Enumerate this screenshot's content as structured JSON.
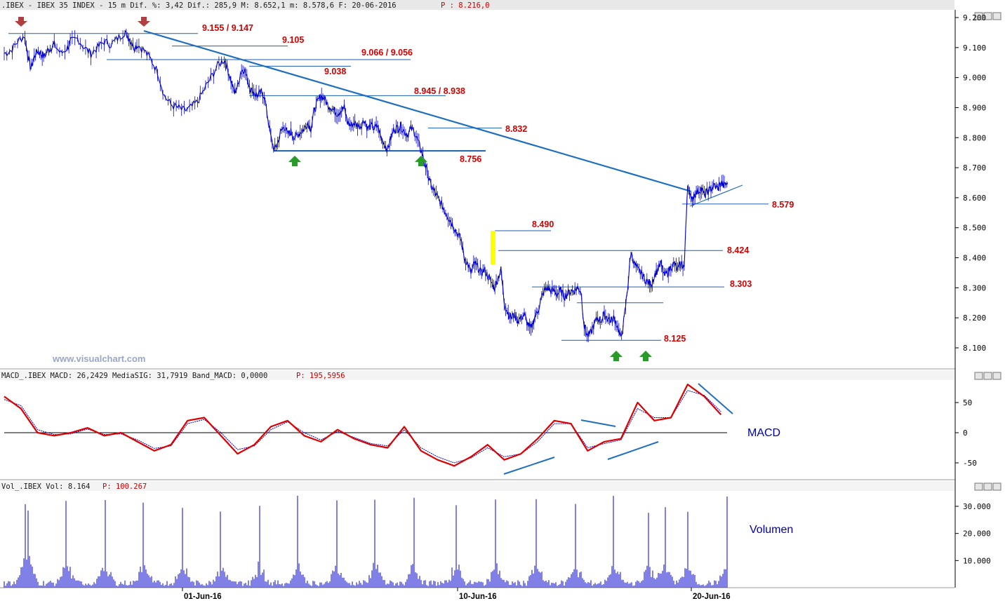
{
  "header": {
    "price_text": ".IBEX - IBEX 35 INDEX -  15 m Dif. %: 3,42 Dif.: 285,9 M: 8.652,1 m: 8.578,6 F: 20-06-2016",
    "price_p": "P : 8.216,0",
    "macd_text": "MACD_.IBEX MACD: 26,2429 MediaSIG: 31,7919 Band_MACD: 0,0000",
    "macd_p": "P: 195,5956",
    "vol_text": "Vol_.IBEX Vol: 8.164",
    "vol_p": "P: 100.267"
  },
  "watermark": "www.visualchart.com",
  "labels": {
    "macd": "MACD",
    "volume": "Volumen"
  },
  "colors": {
    "price": "#0000cc",
    "level": "#1a5fb0",
    "trend": "#1f6fc0",
    "macd": "#dd0000",
    "signal": "#0000aa",
    "label": "#d40000",
    "arrow_down": "#b04040",
    "arrow_up": "#2a9a2a",
    "gap": "#ffff00"
  },
  "chart_data": [
    {
      "type": "line",
      "name": "price",
      "x_labels": [
        "01-Jun-16",
        "10-Jun-16",
        "20-Jun-16"
      ],
      "ylim": [
        8050,
        9220
      ],
      "y_ticks": [
        "9.200",
        "9.100",
        "9.000",
        "8.900",
        "8.800",
        "8.700",
        "8.600",
        "8.500",
        "8.400",
        "8.300",
        "8.200",
        "8.100"
      ],
      "path": [
        [
          0,
          9080
        ],
        [
          2,
          9090
        ],
        [
          4,
          9120
        ],
        [
          6,
          9140
        ],
        [
          7,
          9080
        ],
        [
          8,
          9030
        ],
        [
          9,
          9070
        ],
        [
          10,
          9090
        ],
        [
          11,
          9080
        ],
        [
          12,
          9070
        ],
        [
          13,
          9090
        ],
        [
          14,
          9100
        ],
        [
          15,
          9110
        ],
        [
          17,
          9080
        ],
        [
          19,
          9100
        ],
        [
          20,
          9120
        ],
        [
          22,
          9130
        ],
        [
          24,
          9100
        ],
        [
          26,
          9080
        ],
        [
          28,
          9100
        ],
        [
          30,
          9120
        ],
        [
          32,
          9110
        ],
        [
          34,
          9130
        ],
        [
          36,
          9150
        ],
        [
          37,
          9140
        ],
        [
          38,
          9120
        ],
        [
          39,
          9100
        ],
        [
          40,
          9110
        ],
        [
          42,
          9090
        ],
        [
          44,
          9060
        ],
        [
          46,
          9020
        ],
        [
          48,
          8940
        ],
        [
          50,
          8910
        ],
        [
          52,
          8900
        ],
        [
          54,
          8890
        ],
        [
          56,
          8900
        ],
        [
          58,
          8920
        ],
        [
          60,
          8960
        ],
        [
          62,
          9000
        ],
        [
          64,
          9040
        ],
        [
          66,
          9060
        ],
        [
          67,
          9030
        ],
        [
          68,
          8990
        ],
        [
          69,
          8950
        ],
        [
          70,
          8970
        ],
        [
          71,
          9020
        ],
        [
          72,
          9030
        ],
        [
          73,
          8990
        ],
        [
          74,
          8960
        ],
        [
          75,
          8950
        ],
        [
          76,
          8940
        ],
        [
          77,
          8950
        ],
        [
          78,
          8940
        ],
        [
          79,
          8870
        ],
        [
          80,
          8800
        ],
        [
          81,
          8760
        ],
        [
          82,
          8780
        ],
        [
          83,
          8820
        ],
        [
          84,
          8840
        ],
        [
          85,
          8810
        ],
        [
          86,
          8820
        ],
        [
          87,
          8800
        ],
        [
          88,
          8810
        ],
        [
          89,
          8820
        ],
        [
          90,
          8830
        ],
        [
          91,
          8850
        ],
        [
          92,
          8830
        ],
        [
          93,
          8890
        ],
        [
          94,
          8920
        ],
        [
          95,
          8940
        ],
        [
          96,
          8930
        ],
        [
          97,
          8910
        ],
        [
          98,
          8900
        ],
        [
          99,
          8890
        ],
        [
          100,
          8880
        ],
        [
          101,
          8890
        ],
        [
          102,
          8900
        ],
        [
          103,
          8850
        ],
        [
          104,
          8840
        ],
        [
          105,
          8850
        ],
        [
          106,
          8840
        ],
        [
          107,
          8840
        ],
        [
          108,
          8860
        ],
        [
          109,
          8830
        ],
        [
          110,
          8840
        ],
        [
          111,
          8830
        ],
        [
          112,
          8840
        ],
        [
          113,
          8800
        ],
        [
          114,
          8780
        ],
        [
          115,
          8760
        ],
        [
          116,
          8800
        ],
        [
          117,
          8830
        ],
        [
          118,
          8830
        ],
        [
          119,
          8840
        ],
        [
          120,
          8820
        ],
        [
          121,
          8810
        ],
        [
          122,
          8830
        ],
        [
          123,
          8820
        ],
        [
          124,
          8790
        ],
        [
          125,
          8760
        ],
        [
          126,
          8720
        ],
        [
          127,
          8680
        ],
        [
          128,
          8640
        ],
        [
          129,
          8620
        ],
        [
          130,
          8600
        ],
        [
          131,
          8580
        ],
        [
          132,
          8560
        ],
        [
          133,
          8540
        ],
        [
          134,
          8520
        ],
        [
          135,
          8500
        ],
        [
          136,
          8480
        ],
        [
          137,
          8460
        ],
        [
          138,
          8400
        ],
        [
          139,
          8380
        ],
        [
          140,
          8350
        ],
        [
          141,
          8380
        ],
        [
          142,
          8370
        ],
        [
          143,
          8350
        ],
        [
          144,
          8360
        ],
        [
          145,
          8340
        ],
        [
          146,
          8320
        ],
        [
          147,
          8300
        ],
        [
          148,
          8330
        ],
        [
          149,
          8360
        ],
        [
          150,
          8250
        ],
        [
          151,
          8220
        ],
        [
          152,
          8200
        ],
        [
          153,
          8210
        ],
        [
          154,
          8190
        ],
        [
          155,
          8200
        ],
        [
          156,
          8210
        ],
        [
          157,
          8180
        ],
        [
          158,
          8160
        ],
        [
          159,
          8200
        ],
        [
          160,
          8220
        ],
        [
          161,
          8260
        ],
        [
          162,
          8290
        ],
        [
          163,
          8300
        ],
        [
          164,
          8290
        ],
        [
          165,
          8290
        ],
        [
          166,
          8280
        ],
        [
          167,
          8290
        ],
        [
          168,
          8270
        ],
        [
          169,
          8280
        ],
        [
          170,
          8290
        ],
        [
          171,
          8290
        ],
        [
          172,
          8300
        ],
        [
          173,
          8290
        ],
        [
          174,
          8170
        ],
        [
          175,
          8140
        ],
        [
          176,
          8150
        ],
        [
          177,
          8180
        ],
        [
          178,
          8200
        ],
        [
          179,
          8190
        ],
        [
          180,
          8210
        ],
        [
          181,
          8200
        ],
        [
          182,
          8190
        ],
        [
          183,
          8200
        ],
        [
          184,
          8170
        ],
        [
          185,
          8130
        ],
        [
          186,
          8200
        ],
        [
          187,
          8300
        ],
        [
          188,
          8420
        ],
        [
          189,
          8380
        ],
        [
          190,
          8360
        ],
        [
          191,
          8350
        ],
        [
          192,
          8330
        ],
        [
          193,
          8320
        ],
        [
          194,
          8310
        ],
        [
          195,
          8340
        ],
        [
          196,
          8360
        ],
        [
          197,
          8380
        ],
        [
          198,
          8340
        ],
        [
          199,
          8350
        ],
        [
          200,
          8370
        ],
        [
          201,
          8380
        ],
        [
          202,
          8360
        ],
        [
          203,
          8380
        ],
        [
          204,
          8370
        ],
        [
          205,
          8650
        ],
        [
          206,
          8590
        ],
        [
          207,
          8610
        ],
        [
          208,
          8620
        ],
        [
          209,
          8630
        ],
        [
          210,
          8610
        ],
        [
          211,
          8620
        ],
        [
          212,
          8630
        ],
        [
          213,
          8640
        ],
        [
          214,
          8630
        ],
        [
          215,
          8650
        ],
        [
          216,
          8640
        ],
        [
          217,
          8650
        ]
      ],
      "levels": [
        {
          "value": 9147,
          "label": "9.155 / 9.147"
        },
        {
          "value": 9105,
          "label": "9.105"
        },
        {
          "value": 9060,
          "label": "9.066 / 9.056"
        },
        {
          "value": 9038,
          "label": "9.038"
        },
        {
          "value": 8940,
          "label": "8.945 / 8.938"
        },
        {
          "value": 8832,
          "label": "8.832"
        },
        {
          "value": 8756,
          "label": "8.756"
        },
        {
          "value": 8579,
          "label": "8.579"
        },
        {
          "value": 8490,
          "label": "8.490"
        },
        {
          "value": 8424,
          "label": "8.424"
        },
        {
          "value": 8303,
          "label": "8.303"
        },
        {
          "value": 8125,
          "label": "8.125"
        }
      ]
    },
    {
      "type": "line",
      "name": "MACD",
      "ylim": [
        -80,
        95
      ],
      "y_ticks": [
        "50",
        "0",
        "-50"
      ],
      "macd": [
        [
          0,
          60
        ],
        [
          5,
          40
        ],
        [
          10,
          0
        ],
        [
          15,
          -5
        ],
        [
          20,
          0
        ],
        [
          25,
          8
        ],
        [
          30,
          -5
        ],
        [
          35,
          0
        ],
        [
          40,
          -15
        ],
        [
          45,
          -30
        ],
        [
          50,
          -20
        ],
        [
          55,
          20
        ],
        [
          60,
          25
        ],
        [
          65,
          -5
        ],
        [
          70,
          -35
        ],
        [
          75,
          -20
        ],
        [
          80,
          10
        ],
        [
          85,
          20
        ],
        [
          90,
          -5
        ],
        [
          95,
          -15
        ],
        [
          100,
          5
        ],
        [
          105,
          -10
        ],
        [
          110,
          -20
        ],
        [
          115,
          -25
        ],
        [
          120,
          10
        ],
        [
          125,
          -30
        ],
        [
          130,
          -45
        ],
        [
          135,
          -55
        ],
        [
          140,
          -40
        ],
        [
          145,
          -20
        ],
        [
          150,
          -45
        ],
        [
          155,
          -35
        ],
        [
          160,
          -10
        ],
        [
          165,
          20
        ],
        [
          170,
          15
        ],
        [
          175,
          -30
        ],
        [
          180,
          -15
        ],
        [
          185,
          -10
        ],
        [
          190,
          50
        ],
        [
          195,
          20
        ],
        [
          200,
          25
        ],
        [
          205,
          80
        ],
        [
          210,
          60
        ],
        [
          215,
          30
        ]
      ],
      "signal": [
        [
          0,
          55
        ],
        [
          5,
          45
        ],
        [
          10,
          5
        ],
        [
          15,
          -3
        ],
        [
          20,
          -2
        ],
        [
          25,
          6
        ],
        [
          30,
          -3
        ],
        [
          35,
          -2
        ],
        [
          40,
          -12
        ],
        [
          45,
          -26
        ],
        [
          50,
          -22
        ],
        [
          55,
          15
        ],
        [
          60,
          22
        ],
        [
          65,
          0
        ],
        [
          70,
          -28
        ],
        [
          75,
          -22
        ],
        [
          80,
          5
        ],
        [
          85,
          18
        ],
        [
          90,
          0
        ],
        [
          95,
          -12
        ],
        [
          100,
          2
        ],
        [
          105,
          -8
        ],
        [
          110,
          -18
        ],
        [
          115,
          -22
        ],
        [
          120,
          5
        ],
        [
          125,
          -25
        ],
        [
          130,
          -40
        ],
        [
          135,
          -50
        ],
        [
          140,
          -42
        ],
        [
          145,
          -25
        ],
        [
          150,
          -40
        ],
        [
          155,
          -35
        ],
        [
          160,
          -15
        ],
        [
          165,
          15
        ],
        [
          170,
          15
        ],
        [
          175,
          -25
        ],
        [
          180,
          -18
        ],
        [
          185,
          -12
        ],
        [
          190,
          40
        ],
        [
          195,
          25
        ],
        [
          200,
          25
        ],
        [
          205,
          70
        ],
        [
          210,
          62
        ],
        [
          215,
          35
        ]
      ]
    },
    {
      "type": "bar",
      "name": "Volume",
      "ylim": [
        0,
        35000
      ],
      "y_ticks": [
        "30.000",
        "20.000",
        "10.000"
      ]
    }
  ]
}
